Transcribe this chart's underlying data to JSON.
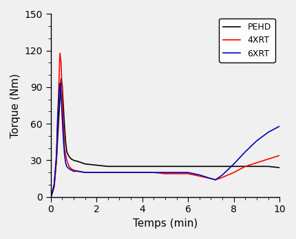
{
  "title": "",
  "xlabel": "Temps (min)",
  "ylabel": "Torque (Nm)",
  "xlim": [
    0,
    10
  ],
  "ylim": [
    0,
    150
  ],
  "yticks": [
    0,
    30,
    60,
    90,
    120,
    150
  ],
  "xticks": [
    0,
    2,
    4,
    6,
    8,
    10
  ],
  "legend_labels": [
    "PEHD",
    "4XRT",
    "6XRT"
  ],
  "legend_colors": [
    "#000000",
    "#ff0000",
    "#0000bb"
  ],
  "bg_color": "#f0f0f0",
  "series": {
    "PEHD": {
      "color": "#000000",
      "x": [
        0,
        0.05,
        0.15,
        0.25,
        0.35,
        0.4,
        0.45,
        0.5,
        0.55,
        0.6,
        0.65,
        0.7,
        0.8,
        0.9,
        1.0,
        1.2,
        1.5,
        2.0,
        2.5,
        3.0,
        3.5,
        4.0,
        4.5,
        5.0,
        5.5,
        6.0,
        6.5,
        7.0,
        7.5,
        8.0,
        8.5,
        9.0,
        9.5,
        10.0
      ],
      "y": [
        0,
        3,
        10,
        30,
        65,
        80,
        97,
        92,
        75,
        58,
        45,
        37,
        33,
        31,
        30,
        29,
        27,
        26,
        25,
        25,
        25,
        25,
        25,
        25,
        25,
        25,
        25,
        25,
        25,
        25,
        25,
        25,
        25,
        24
      ]
    },
    "4XRT": {
      "color": "#ff0000",
      "x": [
        0,
        0.05,
        0.15,
        0.25,
        0.3,
        0.35,
        0.4,
        0.45,
        0.5,
        0.55,
        0.6,
        0.7,
        0.8,
        0.9,
        1.0,
        1.2,
        1.5,
        2.0,
        2.5,
        3.0,
        3.5,
        4.0,
        4.5,
        5.0,
        5.5,
        6.0,
        6.5,
        7.0,
        7.2,
        7.5,
        8.0,
        8.5,
        9.0,
        9.5,
        10.0
      ],
      "y": [
        0,
        2,
        8,
        30,
        60,
        90,
        118,
        110,
        85,
        60,
        40,
        30,
        25,
        23,
        22,
        21,
        20,
        20,
        20,
        20,
        20,
        20,
        20,
        19,
        19,
        19,
        17,
        15,
        14,
        16,
        20,
        25,
        28,
        31,
        34
      ]
    },
    "6XRT": {
      "color": "#0000bb",
      "x": [
        0,
        0.05,
        0.15,
        0.25,
        0.3,
        0.35,
        0.4,
        0.43,
        0.46,
        0.5,
        0.55,
        0.6,
        0.65,
        0.7,
        0.8,
        0.9,
        1.0,
        1.2,
        1.5,
        2.0,
        2.5,
        3.0,
        3.5,
        4.0,
        4.5,
        5.0,
        5.5,
        6.0,
        6.5,
        7.0,
        7.2,
        7.5,
        8.0,
        8.5,
        9.0,
        9.5,
        10.0
      ],
      "y": [
        0,
        2,
        10,
        35,
        65,
        82,
        93,
        90,
        82,
        65,
        48,
        35,
        28,
        25,
        23,
        22,
        21,
        21,
        20,
        20,
        20,
        20,
        20,
        20,
        20,
        20,
        20,
        20,
        18,
        15,
        14,
        18,
        27,
        37,
        46,
        53,
        58
      ]
    }
  }
}
